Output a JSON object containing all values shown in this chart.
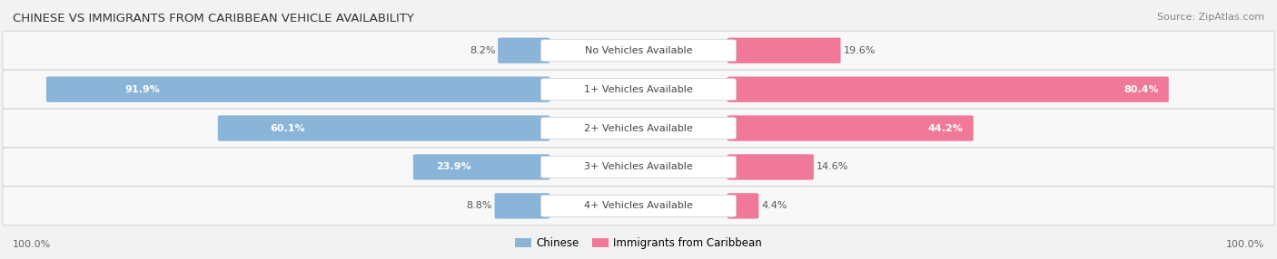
{
  "title": "CHINESE VS IMMIGRANTS FROM CARIBBEAN VEHICLE AVAILABILITY",
  "source": "Source: ZipAtlas.com",
  "categories": [
    "No Vehicles Available",
    "1+ Vehicles Available",
    "2+ Vehicles Available",
    "3+ Vehicles Available",
    "4+ Vehicles Available"
  ],
  "chinese_values": [
    8.2,
    91.9,
    60.1,
    23.9,
    8.8
  ],
  "caribbean_values": [
    19.6,
    80.4,
    44.2,
    14.6,
    4.4
  ],
  "chinese_color": "#8ab4d8",
  "caribbean_color": "#f07898",
  "bg_color": "#f2f2f2",
  "row_bg_color": "#ffffff",
  "max_val": 100.0,
  "legend_chinese": "Chinese",
  "legend_caribbean": "Immigrants from Caribbean",
  "bottom_left": "100.0%",
  "bottom_right": "100.0%",
  "title_fontsize": 9.5,
  "source_fontsize": 8,
  "label_fontsize": 8,
  "value_fontsize": 8
}
